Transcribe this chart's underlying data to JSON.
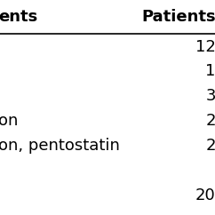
{
  "col_headers": [
    "ents",
    "Patients"
  ],
  "rows": [
    [
      "",
      "12"
    ],
    [
      "",
      "1"
    ],
    [
      "",
      "3"
    ],
    [
      "on",
      "2"
    ],
    [
      "on, pentostatin",
      "2"
    ],
    [
      "",
      ""
    ],
    [
      "",
      "20"
    ]
  ],
  "bg_color": "#ffffff",
  "font_size_header": 13,
  "font_size_body": 13,
  "text_color": "#000000"
}
